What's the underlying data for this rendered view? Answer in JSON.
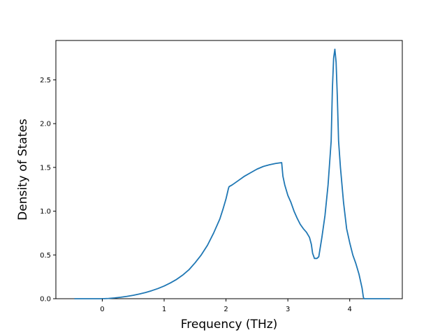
{
  "chart_data": {
    "type": "line",
    "title": "",
    "xlabel": "Frequency (THz)",
    "ylabel": "Density of States",
    "xlim": [
      -0.75,
      4.85
    ],
    "ylim": [
      0.0,
      2.95
    ],
    "xticks": [
      0,
      1,
      2,
      3,
      4
    ],
    "xtick_labels": [
      "0",
      "1",
      "2",
      "3",
      "4"
    ],
    "yticks": [
      0.0,
      0.5,
      1.0,
      1.5,
      2.0,
      2.5
    ],
    "ytick_labels": [
      "0.0",
      "0.5",
      "1.0",
      "1.5",
      "2.0",
      "2.5"
    ],
    "grid": false,
    "legend": "none",
    "series": [
      {
        "color": "#1f77b4",
        "x": [
          -0.45,
          -0.2,
          0.0,
          0.1,
          0.2,
          0.3,
          0.4,
          0.5,
          0.6,
          0.7,
          0.8,
          0.9,
          1.0,
          1.1,
          1.2,
          1.3,
          1.4,
          1.5,
          1.6,
          1.7,
          1.8,
          1.9,
          1.95,
          2.0,
          2.02,
          2.04,
          2.05,
          2.1,
          2.2,
          2.3,
          2.4,
          2.5,
          2.6,
          2.7,
          2.8,
          2.9,
          2.92,
          2.95,
          3.0,
          3.05,
          3.1,
          3.15,
          3.2,
          3.25,
          3.3,
          3.35,
          3.38,
          3.4,
          3.43,
          3.47,
          3.5,
          3.55,
          3.6,
          3.65,
          3.7,
          3.72,
          3.74,
          3.76,
          3.78,
          3.8,
          3.82,
          3.85,
          3.9,
          3.95,
          4.0,
          4.05,
          4.1,
          4.15,
          4.2,
          4.22,
          4.23,
          4.3,
          4.45,
          4.65
        ],
        "y": [
          0.0,
          0.0,
          0.0,
          0.003,
          0.009,
          0.017,
          0.027,
          0.039,
          0.054,
          0.071,
          0.092,
          0.116,
          0.145,
          0.18,
          0.22,
          0.27,
          0.33,
          0.41,
          0.5,
          0.61,
          0.75,
          0.91,
          1.02,
          1.14,
          1.2,
          1.26,
          1.28,
          1.3,
          1.35,
          1.4,
          1.44,
          1.48,
          1.51,
          1.53,
          1.545,
          1.555,
          1.4,
          1.3,
          1.18,
          1.1,
          1.0,
          0.92,
          0.85,
          0.8,
          0.76,
          0.7,
          0.62,
          0.52,
          0.46,
          0.46,
          0.48,
          0.7,
          0.95,
          1.3,
          1.8,
          2.4,
          2.75,
          2.85,
          2.7,
          2.3,
          1.8,
          1.5,
          1.1,
          0.8,
          0.64,
          0.5,
          0.4,
          0.28,
          0.12,
          0.02,
          0.0,
          0.0,
          0.0,
          0.0
        ]
      }
    ]
  }
}
